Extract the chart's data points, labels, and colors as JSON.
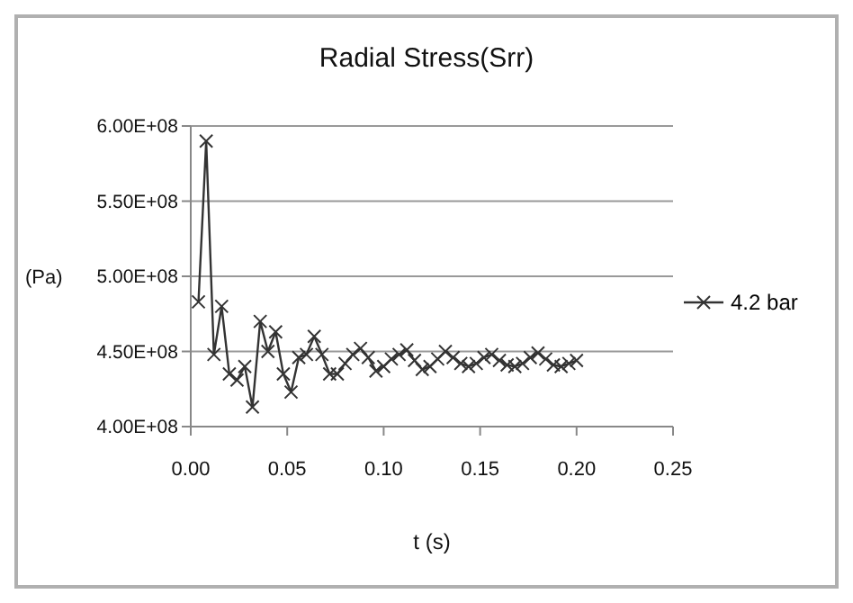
{
  "chart_data": {
    "type": "line",
    "title": "Radial Stress(Srr)",
    "xlabel": "t (s)",
    "ylabel": "(Pa)",
    "x": [
      0.004,
      0.008,
      0.012,
      0.016,
      0.02,
      0.024,
      0.028,
      0.032,
      0.036,
      0.04,
      0.044,
      0.048,
      0.052,
      0.056,
      0.06,
      0.064,
      0.068,
      0.072,
      0.076,
      0.08,
      0.084,
      0.088,
      0.092,
      0.096,
      0.1,
      0.104,
      0.108,
      0.112,
      0.116,
      0.12,
      0.124,
      0.128,
      0.132,
      0.136,
      0.14,
      0.144,
      0.148,
      0.152,
      0.156,
      0.16,
      0.164,
      0.168,
      0.172,
      0.176,
      0.18,
      0.184,
      0.188,
      0.192,
      0.196,
      0.2
    ],
    "series": [
      {
        "name": "4.2 bar",
        "color": "#333333",
        "values": [
          483000000,
          590000000,
          448000000,
          480000000,
          435000000,
          431000000,
          440000000,
          413000000,
          470000000,
          450000000,
          463000000,
          435000000,
          423000000,
          446000000,
          448000000,
          460000000,
          448000000,
          435000000,
          435000000,
          442000000,
          448000000,
          452000000,
          446000000,
          437000000,
          440000000,
          445000000,
          448000000,
          451000000,
          444000000,
          438000000,
          440000000,
          445000000,
          450000000,
          446000000,
          442000000,
          440000000,
          442000000,
          446000000,
          448000000,
          444000000,
          441000000,
          440000000,
          442000000,
          446000000,
          449000000,
          445000000,
          441000000,
          440000000,
          442000000,
          444000000
        ]
      }
    ],
    "xlim": [
      0,
      0.25
    ],
    "xticks": [
      {
        "value": 0,
        "label": "0.00"
      },
      {
        "value": 0.05,
        "label": "0.05"
      },
      {
        "value": 0.1,
        "label": "0.10"
      },
      {
        "value": 0.15,
        "label": "0.15"
      },
      {
        "value": 0.2,
        "label": "0.20"
      },
      {
        "value": 0.25,
        "label": "0.25"
      }
    ],
    "ylim": [
      400000000,
      600000000
    ],
    "yticks": [
      {
        "value": 400000000,
        "label": "4.00E+08"
      },
      {
        "value": 450000000,
        "label": "4.50E+08"
      },
      {
        "value": 500000000,
        "label": "5.00E+08"
      },
      {
        "value": 550000000,
        "label": "5.50E+08"
      },
      {
        "value": 600000000,
        "label": "6.00E+08"
      }
    ],
    "grid": "y",
    "legend": "right",
    "marker": "cross",
    "line_style": "solid"
  }
}
